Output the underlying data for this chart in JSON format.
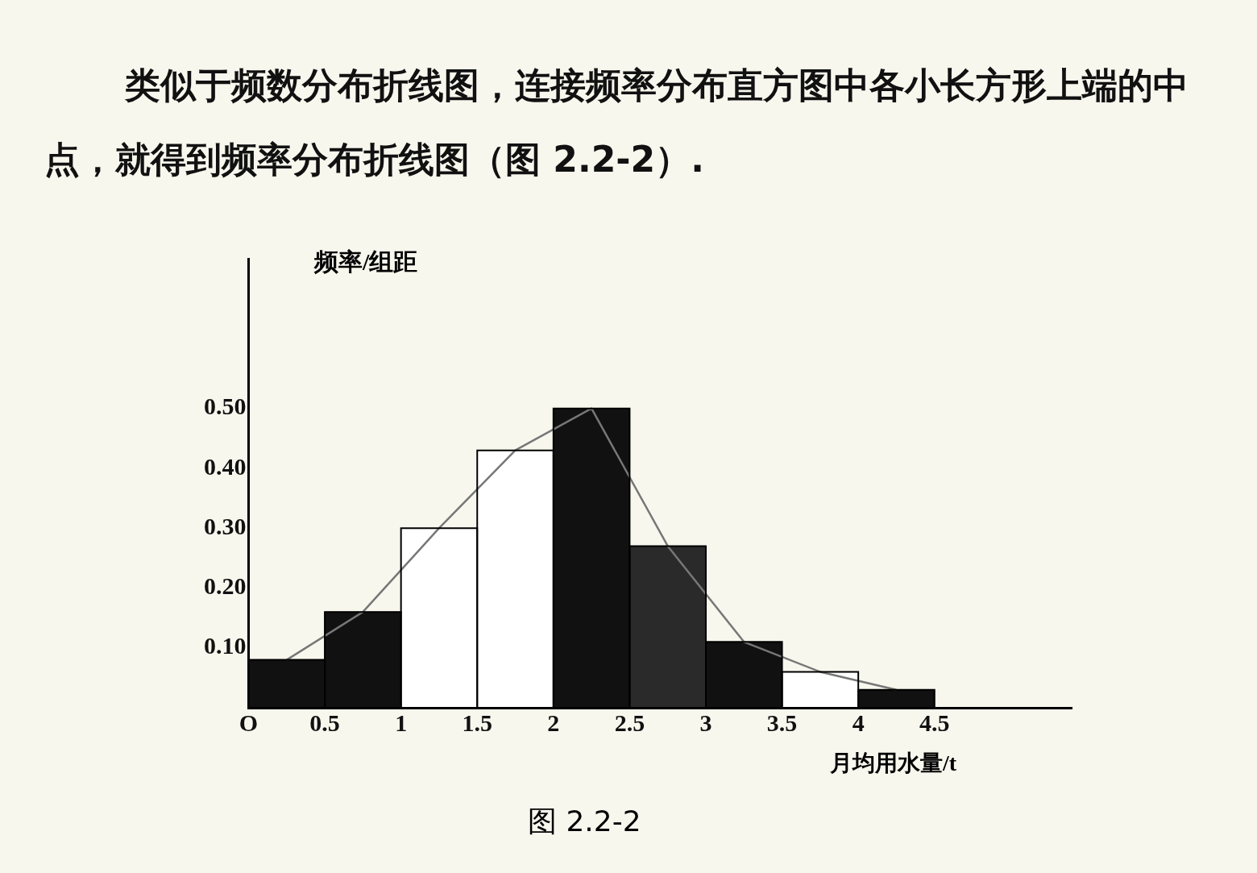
{
  "chart_data": {
    "type": "histogram",
    "title": "类似于频数分布折线图，连接频率分布直方图中各小长方形上端的中点，就得到频率分布折线图（图 2.2-2）.",
    "xlabel": "月均用水量/t",
    "ylabel": "频率/组距",
    "annotations": [
      "图 2.2-2"
    ],
    "bins": [
      0,
      0.5,
      1,
      1.5,
      2,
      2.5,
      3,
      3.5,
      4,
      4.5
    ],
    "series": [
      {
        "type": "histogram",
        "values": [
          0.08,
          0.16,
          0.3,
          0.43,
          0.5,
          0.27,
          0.11,
          0.06,
          0.03
        ],
        "colors": [
          "#111111",
          "#111111",
          "#ffffff",
          "#ffffff",
          "#111111",
          "#2a2a2a",
          "#111111",
          "#ffffff",
          "#111111"
        ]
      },
      {
        "type": "line",
        "x": [
          0.25,
          0.75,
          1.25,
          1.75,
          2.25,
          2.75,
          3.25,
          3.75,
          4.25
        ],
        "values": [
          0.08,
          0.16,
          0.3,
          0.43,
          0.5,
          0.27,
          0.11,
          0.06,
          0.03
        ],
        "color": "#777777"
      }
    ],
    "xlim": [
      0,
      5.4
    ],
    "ylim": [
      0,
      0.75
    ],
    "xticks": [
      {
        "value": 0,
        "label": "O"
      },
      0.5,
      1,
      1.5,
      2,
      2.5,
      3,
      3.5,
      4,
      4.5
    ],
    "yticks": [
      {
        "value": 0.1,
        "label": "0.10"
      },
      {
        "value": 0.2,
        "label": "0.20"
      },
      {
        "value": 0.3,
        "label": "0.30"
      },
      {
        "value": 0.4,
        "label": "0.40"
      },
      {
        "value": 0.5,
        "label": "0.50"
      }
    ],
    "grid": false
  }
}
